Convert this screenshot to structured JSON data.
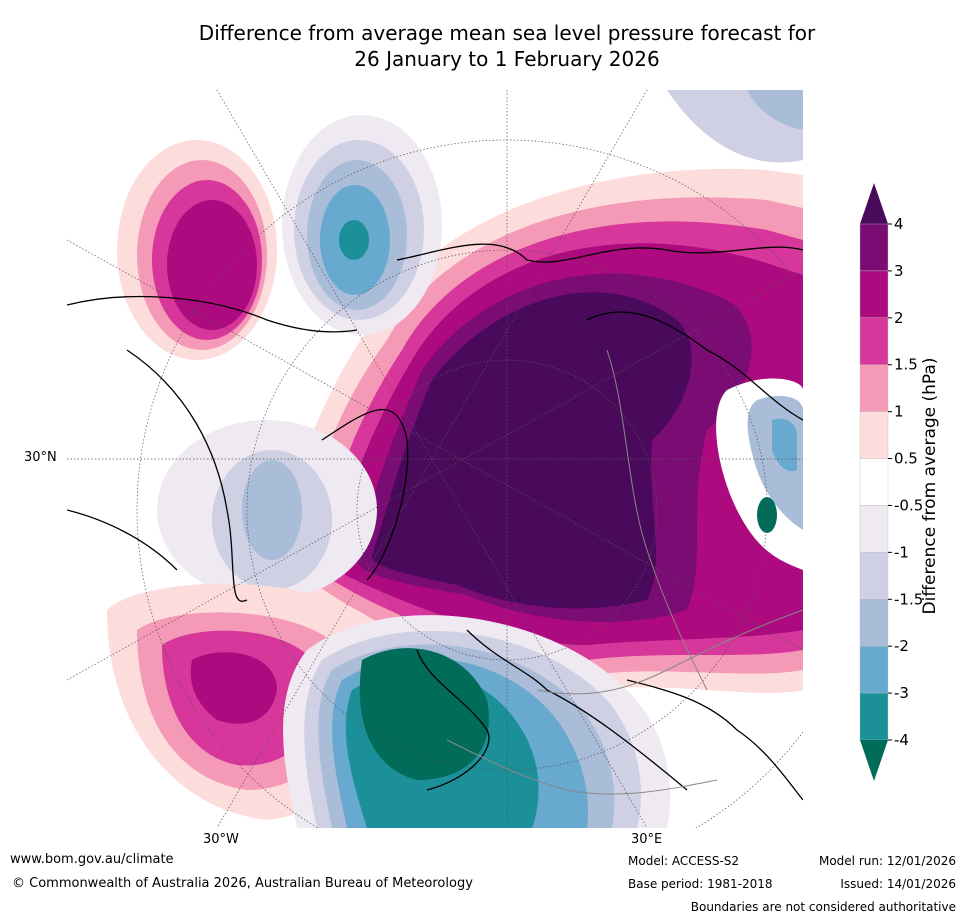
{
  "title": {
    "line1": "Difference from average mean sea level pressure forecast for",
    "line2": "26 January to 1 February 2026"
  },
  "map": {
    "lat_label": "30°N",
    "lon_labels": [
      "30°W",
      "30°E"
    ]
  },
  "colorbar": {
    "label": "Difference from average (hPa)",
    "ticks": [
      "4",
      "3",
      "2",
      "1.5",
      "1",
      "0.5",
      "-0.5",
      "-1",
      "-1.5",
      "-2",
      "-3",
      "-4"
    ],
    "colors": {
      "above_4": "#4a0a5c",
      "3_to_4": "#7a0c73",
      "2_to_3": "#ad0a7f",
      "1.5_to_2": "#d7379b",
      "1_to_1.5": "#f59ab6",
      "0.5_to_1": "#fddcdc",
      "neutral": "#ffffff",
      "-1_to_-0.5": "#efeaf2",
      "-1.5_to_-1": "#cfd0e4",
      "-2_to_-1.5": "#a9bdd9",
      "-3_to_-2": "#67a9cf",
      "-4_to_-3": "#1c9099",
      "below_-4": "#016c59"
    }
  },
  "footer": {
    "website": "www.bom.gov.au/climate",
    "copyright": "© Commonwealth of Australia 2026, Australian Bureau of Meteorology",
    "model": "Model: ACCESS-S2",
    "base_period": "Base period: 1981-2018",
    "model_run": "Model run: 12/01/2026",
    "issued": "Issued: 14/01/2026",
    "disclaimer": "Boundaries are not considered authoritative"
  }
}
